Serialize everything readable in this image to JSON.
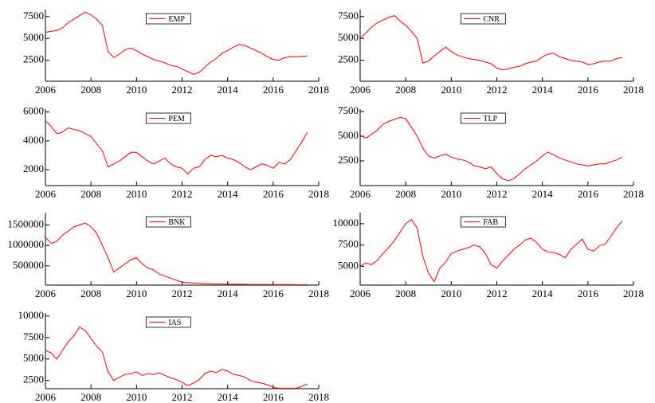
{
  "chart_data": [
    {
      "type": "line",
      "x": [
        2006,
        2006.25,
        2006.5,
        2006.75,
        2007,
        2007.25,
        2007.5,
        2007.75,
        2008,
        2008.25,
        2008.5,
        2008.75,
        2009,
        2009.25,
        2009.5,
        2009.75,
        2010,
        2010.25,
        2010.5,
        2010.75,
        2011,
        2011.25,
        2011.5,
        2011.75,
        2012,
        2012.25,
        2012.5,
        2012.75,
        2013,
        2013.25,
        2013.5,
        2013.75,
        2014,
        2014.25,
        2014.5,
        2014.75,
        2015,
        2015.25,
        2015.5,
        2015.75,
        2016,
        2016.25,
        2016.5,
        2016.75,
        2017,
        2017.25,
        2017.5
      ],
      "series": [
        {
          "name": "EMP",
          "color": "#ff0000",
          "values": [
            5700,
            5800,
            5900,
            6200,
            6800,
            7200,
            7600,
            8000,
            7700,
            7200,
            6500,
            3500,
            2800,
            3200,
            3700,
            3900,
            3600,
            3200,
            2900,
            2600,
            2400,
            2200,
            1900,
            1800,
            1500,
            1200,
            900,
            1100,
            1700,
            2300,
            2700,
            3300,
            3600,
            4000,
            4300,
            4200,
            3900,
            3600,
            3300,
            2900,
            2600,
            2500,
            2800,
            2900,
            2900,
            2950,
            3000
          ]
        }
      ],
      "xlim": [
        2006,
        2018
      ],
      "xticks": [
        2006,
        2008,
        2010,
        2012,
        2014,
        2016,
        2018
      ],
      "ylim": [
        100,
        8300
      ],
      "yticks": [
        2500,
        5000,
        7500
      ],
      "legend": "upper center"
    },
    {
      "type": "line",
      "x": [
        2006,
        2006.25,
        2006.5,
        2006.75,
        2007,
        2007.25,
        2007.5,
        2007.75,
        2008,
        2008.25,
        2008.5,
        2008.75,
        2009,
        2009.25,
        2009.5,
        2009.75,
        2010,
        2010.25,
        2010.5,
        2010.75,
        2011,
        2011.25,
        2011.5,
        2011.75,
        2012,
        2012.25,
        2012.5,
        2012.75,
        2013,
        2013.25,
        2013.5,
        2013.75,
        2014,
        2014.25,
        2014.5,
        2014.75,
        2015,
        2015.25,
        2015.5,
        2015.75,
        2016,
        2016.25,
        2016.5,
        2016.75,
        2017,
        2017.25,
        2017.5
      ],
      "series": [
        {
          "name": "CNR",
          "color": "#ff0000",
          "values": [
            5000,
            5600,
            6300,
            6800,
            7100,
            7400,
            7600,
            7000,
            6500,
            5800,
            5000,
            2200,
            2400,
            3000,
            3500,
            4000,
            3500,
            3100,
            2900,
            2700,
            2600,
            2500,
            2300,
            2100,
            1600,
            1400,
            1500,
            1700,
            1800,
            2100,
            2300,
            2400,
            2900,
            3200,
            3300,
            2900,
            2700,
            2500,
            2400,
            2300,
            2000,
            2100,
            2300,
            2400,
            2400,
            2700,
            2800
          ]
        }
      ],
      "xlim": [
        2006,
        2018
      ],
      "xticks": [
        2006,
        2008,
        2010,
        2012,
        2014,
        2016,
        2018
      ],
      "ylim": [
        100,
        8300
      ],
      "yticks": [
        2500,
        5000,
        7500
      ],
      "legend": "upper center"
    },
    {
      "type": "line",
      "x": [
        2006,
        2006.25,
        2006.5,
        2006.75,
        2007,
        2007.25,
        2007.5,
        2007.75,
        2008,
        2008.25,
        2008.5,
        2008.75,
        2009,
        2009.25,
        2009.5,
        2009.75,
        2010,
        2010.25,
        2010.5,
        2010.75,
        2011,
        2011.25,
        2011.5,
        2011.75,
        2012,
        2012.25,
        2012.5,
        2012.75,
        2013,
        2013.25,
        2013.5,
        2013.75,
        2014,
        2014.25,
        2014.5,
        2014.75,
        2015,
        2015.25,
        2015.5,
        2015.75,
        2016,
        2016.25,
        2016.5,
        2016.75,
        2017,
        2017.25,
        2017.5
      ],
      "series": [
        {
          "name": "PEM",
          "color": "#ff0000",
          "values": [
            5400,
            5000,
            4500,
            4600,
            4900,
            4800,
            4700,
            4500,
            4300,
            3800,
            3300,
            2200,
            2400,
            2600,
            2900,
            3200,
            3200,
            2900,
            2600,
            2400,
            2600,
            2800,
            2400,
            2200,
            2100,
            1700,
            2100,
            2200,
            2700,
            3000,
            2900,
            3000,
            2800,
            2700,
            2500,
            2200,
            2000,
            2200,
            2400,
            2300,
            2100,
            2500,
            2400,
            2700,
            3300,
            3900,
            4600
          ]
        }
      ],
      "xlim": [
        2006,
        2018
      ],
      "xticks": [
        2006,
        2008,
        2010,
        2012,
        2014,
        2016,
        2018
      ],
      "ylim": [
        900,
        6200
      ],
      "yticks": [
        2000,
        4000,
        6000
      ],
      "legend": "upper center"
    },
    {
      "type": "line",
      "x": [
        2006,
        2006.25,
        2006.5,
        2006.75,
        2007,
        2007.25,
        2007.5,
        2007.75,
        2008,
        2008.25,
        2008.5,
        2008.75,
        2009,
        2009.25,
        2009.5,
        2009.75,
        2010,
        2010.25,
        2010.5,
        2010.75,
        2011,
        2011.25,
        2011.5,
        2011.75,
        2012,
        2012.25,
        2012.5,
        2012.75,
        2013,
        2013.25,
        2013.5,
        2013.75,
        2014,
        2014.25,
        2014.5,
        2014.75,
        2015,
        2015.25,
        2015.5,
        2015.75,
        2016,
        2016.25,
        2016.5,
        2016.75,
        2017,
        2017.25,
        2017.5
      ],
      "series": [
        {
          "name": "TLP",
          "color": "#ff0000",
          "values": [
            5100,
            4800,
            5200,
            5600,
            6200,
            6500,
            6700,
            6900,
            6800,
            5900,
            5000,
            3800,
            3000,
            2800,
            3000,
            3200,
            2900,
            2700,
            2600,
            2400,
            2000,
            1900,
            1700,
            1900,
            1200,
            700,
            500,
            700,
            1200,
            1700,
            2100,
            2500,
            3000,
            3400,
            3100,
            2800,
            2600,
            2400,
            2200,
            2100,
            2000,
            2100,
            2200,
            2200,
            2400,
            2600,
            2900
          ]
        }
      ],
      "xlim": [
        2006,
        2018
      ],
      "xticks": [
        2006,
        2008,
        2010,
        2012,
        2014,
        2016,
        2018
      ],
      "ylim": [
        0,
        7750
      ],
      "yticks": [
        2500,
        5000,
        7500
      ],
      "legend": "upper center"
    },
    {
      "type": "line",
      "x": [
        2006,
        2006.25,
        2006.5,
        2006.75,
        2007,
        2007.25,
        2007.5,
        2007.75,
        2008,
        2008.25,
        2008.5,
        2008.75,
        2009,
        2009.25,
        2009.5,
        2009.75,
        2010,
        2010.25,
        2010.5,
        2010.75,
        2011,
        2011.25,
        2011.5,
        2011.75,
        2012,
        2012.25,
        2012.5,
        2012.75,
        2013,
        2013.25,
        2013.5,
        2013.75,
        2014,
        2014.25,
        2014.5,
        2014.75,
        2015,
        2015.25,
        2015.5,
        2015.75,
        2016,
        2016.25,
        2016.5,
        2016.75,
        2017,
        2017.25,
        2017.5
      ],
      "series": [
        {
          "name": "BNK",
          "color": "#ff0000",
          "values": [
            1200000,
            1050000,
            1100000,
            1250000,
            1350000,
            1450000,
            1500000,
            1550000,
            1450000,
            1300000,
            1000000,
            700000,
            350000,
            450000,
            550000,
            650000,
            700000,
            550000,
            450000,
            400000,
            300000,
            250000,
            200000,
            150000,
            100000,
            90000,
            80000,
            75000,
            70000,
            65000,
            60000,
            60000,
            55000,
            50000,
            50000,
            50000,
            45000,
            45000,
            45000,
            45000,
            42000,
            42000,
            42000,
            42000,
            40000,
            40000,
            40000
          ]
        }
      ],
      "xlim": [
        2006,
        2018
      ],
      "xticks": [
        2006,
        2008,
        2010,
        2012,
        2014,
        2016,
        2018
      ],
      "ylim": [
        30000,
        1800000
      ],
      "yticks": [
        500000,
        1000000,
        1500000
      ],
      "legend": "upper center"
    },
    {
      "type": "line",
      "x": [
        2006,
        2006.25,
        2006.5,
        2006.75,
        2007,
        2007.25,
        2007.5,
        2007.75,
        2008,
        2008.25,
        2008.5,
        2008.75,
        2009,
        2009.25,
        2009.5,
        2009.75,
        2010,
        2010.25,
        2010.5,
        2010.75,
        2011,
        2011.25,
        2011.5,
        2011.75,
        2012,
        2012.25,
        2012.5,
        2012.75,
        2013,
        2013.25,
        2013.5,
        2013.75,
        2014,
        2014.25,
        2014.5,
        2014.75,
        2015,
        2015.25,
        2015.5,
        2015.75,
        2016,
        2016.25,
        2016.5,
        2016.75,
        2017,
        2017.25,
        2017.5
      ],
      "series": [
        {
          "name": "FAB",
          "color": "#ff0000",
          "values": [
            5000,
            5400,
            5200,
            5700,
            6500,
            7200,
            8000,
            9000,
            10000,
            10500,
            9500,
            6200,
            4200,
            3200,
            4800,
            5500,
            6500,
            6800,
            7000,
            7200,
            7500,
            7300,
            6500,
            5200,
            4800,
            5600,
            6300,
            7000,
            7500,
            8100,
            8300,
            7800,
            7000,
            6700,
            6600,
            6400,
            6000,
            7000,
            7600,
            8200,
            7000,
            6800,
            7400,
            7600,
            8500,
            9500,
            10300
          ]
        }
      ],
      "xlim": [
        2006,
        2018
      ],
      "xticks": [
        2006,
        2008,
        2010,
        2012,
        2014,
        2016,
        2018
      ],
      "ylim": [
        2800,
        11300
      ],
      "yticks": [
        5000,
        7500,
        10000
      ],
      "legend": "upper center"
    },
    {
      "type": "line",
      "x": [
        2006,
        2006.25,
        2006.5,
        2006.75,
        2007,
        2007.25,
        2007.5,
        2007.75,
        2008,
        2008.25,
        2008.5,
        2008.75,
        2009,
        2009.25,
        2009.5,
        2009.75,
        2010,
        2010.25,
        2010.5,
        2010.75,
        2011,
        2011.25,
        2011.5,
        2011.75,
        2012,
        2012.25,
        2012.5,
        2012.75,
        2013,
        2013.25,
        2013.5,
        2013.75,
        2014,
        2014.25,
        2014.5,
        2014.75,
        2015,
        2015.25,
        2015.5,
        2015.75,
        2016,
        2016.25,
        2016.5,
        2016.75,
        2017,
        2017.25,
        2017.5
      ],
      "series": [
        {
          "name": "IAS",
          "color": "#ff0000",
          "values": [
            6000,
            5700,
            5000,
            6000,
            7000,
            7700,
            8700,
            8300,
            7400,
            6500,
            5800,
            3500,
            2500,
            2900,
            3200,
            3300,
            3500,
            3100,
            3300,
            3200,
            3400,
            3100,
            2800,
            2600,
            2300,
            1900,
            2200,
            2600,
            3300,
            3600,
            3400,
            3800,
            3600,
            3200,
            3100,
            2900,
            2500,
            2300,
            2200,
            2000,
            1700,
            1600,
            1600,
            1600,
            1600,
            1800,
            2100
          ]
        }
      ],
      "xlim": [
        2006,
        2018
      ],
      "xticks": [
        2006,
        2008,
        2010,
        2012,
        2014,
        2016,
        2018
      ],
      "ylim": [
        1550,
        10350
      ],
      "yticks": [
        2500,
        5000,
        7500,
        10000
      ],
      "legend": "upper center"
    }
  ]
}
